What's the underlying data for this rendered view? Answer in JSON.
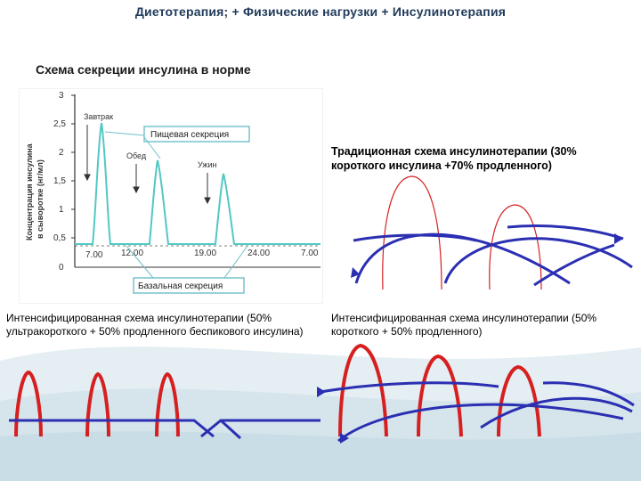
{
  "header": {
    "title": "Диетотерапия; + Физические нагрузки + Инсулинотерапия"
  },
  "norm": {
    "section_title": "Схема секреции инсулина в норме",
    "ylabel_line1": "Концентрация инсулина",
    "ylabel_line2": "в сыворотке (нг/мл)",
    "y_ticks": [
      "3",
      "2,5",
      "2",
      "1,5",
      "1",
      "0,5",
      "0"
    ],
    "x_ticks": [
      "7.00",
      "12.00",
      "19.00",
      "24.00",
      "7.00"
    ],
    "label_breakfast": "Завтрак",
    "label_lunch": "Обед",
    "label_dinner": "Ужин",
    "label_food_secretion": "Пищевая секреция",
    "label_basal_secretion": "Базальная секреция",
    "colors": {
      "curve": "#52c8c2",
      "axis": "#333333",
      "labelbox": "#6fbfca"
    }
  },
  "traditional": {
    "caption": "Традиционная схема инсулинотерапии (30% короткого инсулина +70% продленного)"
  },
  "intensive_ultrashort": {
    "caption": "Интенсифицированная схема инсулинотерапии (50% ультракороткого + 50% продленного беспикового инсулина)"
  },
  "intensive_short": {
    "caption": "Интенсифицированная схема инсулинотерапии (50% короткого + 50% продленного)"
  },
  "colors": {
    "short_insulin": "#d62020",
    "long_insulin": "#2b2fb2",
    "background_wave": "#dbe8ee"
  }
}
